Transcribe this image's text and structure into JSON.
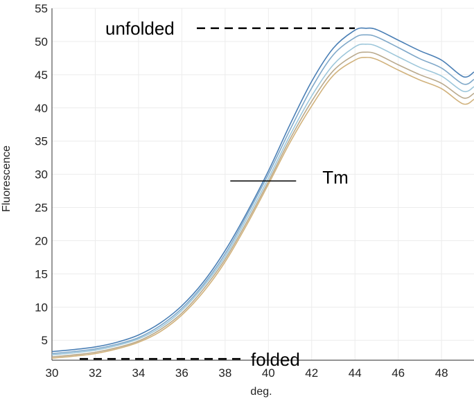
{
  "chart_data": {
    "type": "line",
    "title": "",
    "xlabel": "deg.",
    "ylabel": "Fluorescence",
    "xlim": [
      30,
      49.5
    ],
    "ylim": [
      2,
      55
    ],
    "x_ticks": [
      "30",
      "32",
      "34",
      "36",
      "38",
      "40",
      "42",
      "44",
      "46",
      "48"
    ],
    "y_ticks": [
      "5",
      "10",
      "15",
      "20",
      "25",
      "30",
      "35",
      "40",
      "45",
      "50",
      "55"
    ],
    "grid": true,
    "legend": "none",
    "annotations": {
      "unfolded": "unfolded",
      "folded": "folded",
      "tm": "Tm"
    },
    "annotation_values": {
      "unfolded_y": 52,
      "folded_y": 2.2,
      "tm_x": 40,
      "tm_y": 29
    },
    "series": [
      {
        "color": "#4a7fb5",
        "x": [
          30,
          31,
          32,
          33,
          34,
          35,
          36,
          37,
          38,
          39,
          40,
          41,
          42,
          43,
          44,
          44.5,
          45,
          46,
          47,
          48,
          49,
          49.5
        ],
        "y": [
          3.3,
          3.6,
          4.0,
          4.7,
          5.8,
          7.6,
          10.2,
          13.8,
          18.5,
          24.2,
          30.5,
          37.5,
          44.0,
          49.0,
          51.7,
          52.0,
          51.8,
          50.2,
          48.6,
          47.2,
          44.7,
          45.4
        ]
      },
      {
        "color": "#7fa8c9",
        "x": [
          30,
          31,
          32,
          33,
          34,
          35,
          36,
          37,
          38,
          39,
          40,
          41,
          42,
          43,
          44,
          44.5,
          45,
          46,
          47,
          48,
          49,
          49.5
        ],
        "y": [
          3.0,
          3.3,
          3.7,
          4.4,
          5.4,
          7.2,
          9.8,
          13.4,
          18.0,
          23.8,
          30.0,
          36.7,
          43.0,
          48.0,
          50.6,
          51.0,
          50.7,
          49.1,
          47.4,
          46.0,
          43.6,
          44.3
        ]
      },
      {
        "color": "#9cc6da",
        "x": [
          30,
          31,
          32,
          33,
          34,
          35,
          36,
          37,
          38,
          39,
          40,
          41,
          42,
          43,
          44,
          44.5,
          45,
          46,
          47,
          48,
          49,
          49.5
        ],
        "y": [
          2.8,
          3.1,
          3.5,
          4.2,
          5.2,
          6.9,
          9.5,
          13.1,
          17.6,
          23.3,
          29.4,
          35.9,
          41.8,
          46.5,
          49.2,
          49.6,
          49.3,
          47.7,
          46.1,
          44.8,
          42.5,
          43.2
        ]
      },
      {
        "color": "#b9a98c",
        "x": [
          30,
          31,
          32,
          33,
          34,
          35,
          36,
          37,
          38,
          39,
          40,
          41,
          42,
          43,
          44,
          44.5,
          45,
          46,
          47,
          48,
          49,
          49.5
        ],
        "y": [
          2.5,
          2.8,
          3.2,
          3.9,
          4.9,
          6.6,
          9.1,
          12.7,
          17.2,
          22.8,
          28.9,
          35.3,
          41.0,
          45.6,
          48.0,
          48.4,
          48.1,
          46.5,
          45.0,
          43.7,
          41.5,
          42.2
        ]
      },
      {
        "color": "#d1b27c",
        "x": [
          30,
          31,
          32,
          33,
          34,
          35,
          36,
          37,
          38,
          39,
          40,
          41,
          42,
          43,
          44,
          44.5,
          45,
          46,
          47,
          48,
          49,
          49.5
        ],
        "y": [
          2.3,
          2.6,
          3.0,
          3.7,
          4.7,
          6.3,
          8.8,
          12.3,
          16.8,
          22.4,
          28.5,
          34.8,
          40.3,
          44.9,
          47.2,
          47.6,
          47.3,
          45.7,
          44.2,
          42.9,
          40.6,
          41.3
        ]
      }
    ]
  }
}
